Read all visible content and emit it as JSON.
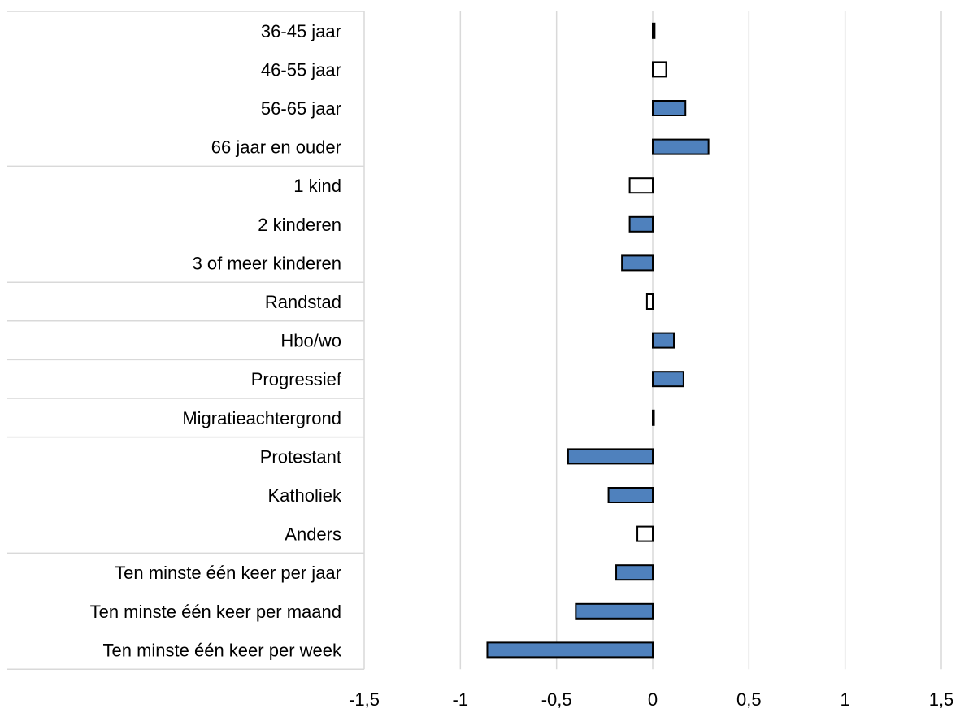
{
  "chart_data": {
    "type": "bar",
    "orientation": "horizontal",
    "categories": [
      "36-45 jaar",
      "46-55 jaar",
      "56-65 jaar",
      "66 jaar en ouder",
      "1 kind",
      "2 kinderen",
      "3 of meer kinderen",
      "Randstad",
      "Hbo/wo",
      "Progressief",
      "Migratieachtergrond",
      "Protestant",
      "Katholiek",
      "Anders",
      "Ten minste één keer per jaar",
      "Ten minste één keer per maand",
      "Ten minste één keer per week"
    ],
    "values": [
      0.01,
      0.07,
      0.17,
      0.29,
      -0.12,
      -0.12,
      -0.16,
      -0.03,
      0.11,
      0.16,
      0.0,
      -0.44,
      -0.23,
      -0.08,
      -0.19,
      -0.4,
      -0.86
    ],
    "significant": [
      false,
      false,
      true,
      true,
      false,
      true,
      true,
      false,
      true,
      true,
      false,
      true,
      true,
      false,
      true,
      true,
      true
    ],
    "groups": [
      [
        "36-45 jaar",
        "46-55 jaar",
        "56-65 jaar",
        "66 jaar en ouder"
      ],
      [
        "1 kind",
        "2 kinderen",
        "3 of meer kinderen"
      ],
      [
        "Randstad"
      ],
      [
        "Hbo/wo"
      ],
      [
        "Progressief"
      ],
      [
        "Migratieachtergrond"
      ],
      [
        "Protestant",
        "Katholiek",
        "Anders"
      ],
      [
        "Ten minste één keer per jaar",
        "Ten minste één keer per maand",
        "Ten minste één keer per week"
      ]
    ],
    "xlim": [
      -1.5,
      1.5
    ],
    "xticks": [
      -1.5,
      -1,
      -0.5,
      0,
      0.5,
      1,
      1.5
    ],
    "xtick_labels": [
      "-1,5",
      "-1",
      "-0,5",
      "0",
      "0,5",
      "1",
      "1,5"
    ],
    "grid": true,
    "colors": {
      "significant_fill": "#4f81bd",
      "nonsignificant_fill": "#ffffff",
      "bar_stroke": "#000000",
      "grid": "#d9d9d9",
      "separator": "#d9d9d9"
    },
    "title": "",
    "xlabel": "",
    "ylabel": ""
  }
}
